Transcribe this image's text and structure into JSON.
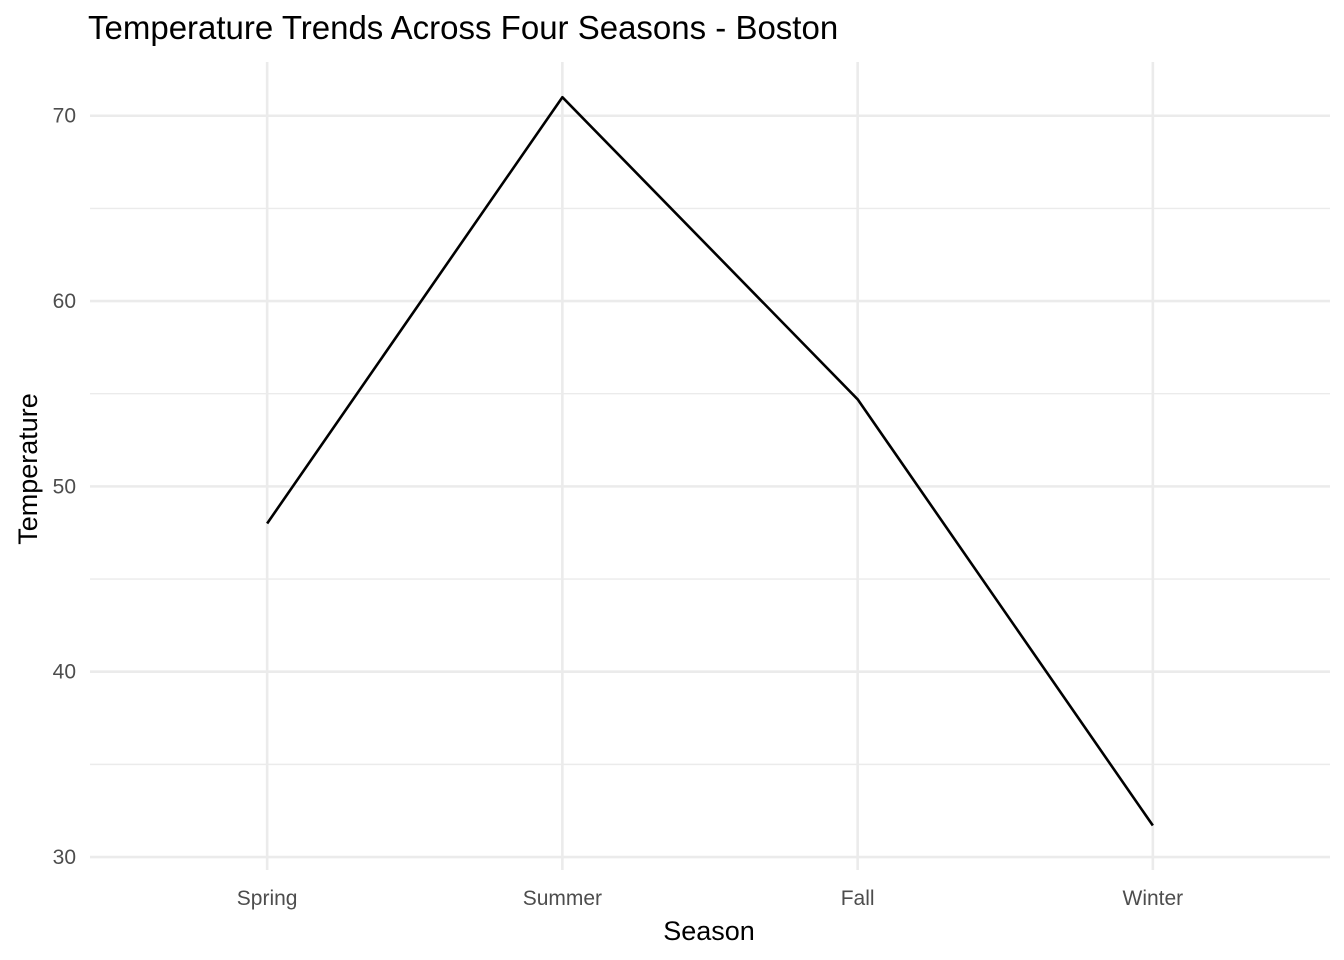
{
  "chart_data": {
    "type": "line",
    "title": "Temperature Trends Across Four Seasons - Boston",
    "xlabel": "Season",
    "ylabel": "Temperature",
    "categories": [
      "Spring",
      "Summer",
      "Fall",
      "Winter"
    ],
    "series": [
      {
        "values": [
          48.0,
          71.0,
          54.7,
          31.7
        ],
        "color": "#000000"
      }
    ],
    "ylim": [
      29.3,
      72.9
    ],
    "yticks": [
      30,
      40,
      50,
      60,
      70
    ],
    "yticks_minor": [
      35,
      45,
      55,
      65
    ],
    "grid": true,
    "legend": "none"
  }
}
